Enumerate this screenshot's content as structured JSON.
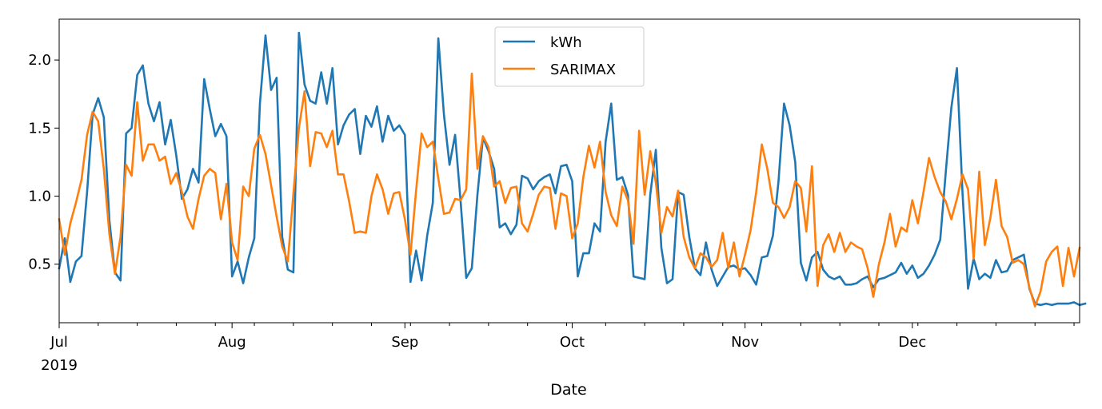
{
  "chart_data": {
    "type": "line",
    "title": "",
    "xlabel": "Date",
    "ylabel": "",
    "x_start": "2019-07-01",
    "x_end": "2019-12-31",
    "ylim": [
      0.07,
      2.3
    ],
    "yticks": [
      0.5,
      1.0,
      1.5,
      2.0
    ],
    "ytick_labels": [
      "0.5",
      "1.0",
      "1.5",
      "2.0"
    ],
    "xticks": [
      {
        "date": "2019-07-01",
        "label": "Jul",
        "sublabel": "2019"
      },
      {
        "date": "2019-08-01",
        "label": "Aug",
        "sublabel": ""
      },
      {
        "date": "2019-09-01",
        "label": "Sep",
        "sublabel": ""
      },
      {
        "date": "2019-10-01",
        "label": "Oct",
        "sublabel": ""
      },
      {
        "date": "2019-11-01",
        "label": "Nov",
        "sublabel": ""
      },
      {
        "date": "2019-12-01",
        "label": "Dec",
        "sublabel": ""
      }
    ],
    "legend_position": "top-center",
    "grid": false,
    "series": [
      {
        "name": "kWh",
        "color": "#1f77b4",
        "values": [
          0.47,
          0.69,
          0.37,
          0.52,
          0.56,
          1.03,
          1.6,
          1.72,
          1.58,
          0.82,
          0.44,
          0.38,
          1.46,
          1.5,
          1.89,
          1.96,
          1.68,
          1.55,
          1.69,
          1.38,
          1.56,
          1.3,
          0.98,
          1.05,
          1.2,
          1.1,
          1.86,
          1.64,
          1.44,
          1.53,
          1.44,
          0.41,
          0.52,
          0.36,
          0.55,
          0.69,
          1.68,
          2.18,
          1.78,
          1.87,
          0.7,
          0.46,
          0.44,
          2.2,
          1.82,
          1.7,
          1.68,
          1.91,
          1.68,
          1.94,
          1.38,
          1.52,
          1.6,
          1.64,
          1.31,
          1.59,
          1.51,
          1.66,
          1.4,
          1.59,
          1.48,
          1.52,
          1.45,
          0.37,
          0.6,
          0.38,
          0.71,
          0.95,
          2.16,
          1.6,
          1.23,
          1.45,
          0.96,
          0.4,
          0.47,
          1.01,
          1.43,
          1.33,
          1.2,
          0.77,
          0.8,
          0.72,
          0.79,
          1.15,
          1.13,
          1.05,
          1.11,
          1.14,
          1.16,
          1.02,
          1.22,
          1.23,
          1.11,
          0.41,
          0.58,
          0.58,
          0.8,
          0.74,
          1.4,
          1.68,
          1.12,
          1.14,
          1.01,
          0.41,
          0.4,
          0.39,
          1.01,
          1.34,
          0.62,
          0.36,
          0.39,
          1.03,
          1.01,
          0.7,
          0.47,
          0.42,
          0.66,
          0.46,
          0.34,
          0.41,
          0.48,
          0.49,
          0.46,
          0.47,
          0.42,
          0.35,
          0.55,
          0.56,
          0.71,
          1.11,
          1.68,
          1.52,
          1.25,
          0.51,
          0.38,
          0.55,
          0.59,
          0.46,
          0.41,
          0.39,
          0.41,
          0.35,
          0.35,
          0.36,
          0.39,
          0.41,
          0.33,
          0.39,
          0.4,
          0.42,
          0.44,
          0.51,
          0.43,
          0.49,
          0.4,
          0.43,
          0.49,
          0.57,
          0.68,
          1.18,
          1.65,
          1.94,
          1.02,
          0.32,
          0.54,
          0.39,
          0.43,
          0.4,
          0.53,
          0.44,
          0.45,
          0.53,
          0.55,
          0.57,
          0.32,
          0.21,
          0.2,
          0.21,
          0.2,
          0.21,
          0.21,
          0.21,
          0.22,
          0.2,
          0.21
        ],
        "count_note": ""
      },
      {
        "name": "SARIMAX",
        "color": "#ff7f0e",
        "values": [
          0.83,
          0.57,
          0.8,
          0.95,
          1.12,
          1.45,
          1.62,
          1.55,
          1.2,
          0.72,
          0.43,
          0.7,
          1.23,
          1.15,
          1.69,
          1.26,
          1.38,
          1.38,
          1.26,
          1.29,
          1.09,
          1.17,
          1.03,
          0.85,
          0.76,
          0.98,
          1.15,
          1.2,
          1.17,
          0.83,
          1.09,
          0.66,
          0.53,
          1.07,
          1.0,
          1.35,
          1.45,
          1.31,
          1.08,
          0.85,
          0.63,
          0.52,
          1.02,
          1.5,
          1.77,
          1.22,
          1.47,
          1.46,
          1.36,
          1.48,
          1.16,
          1.16,
          0.96,
          0.73,
          0.74,
          0.73,
          1.0,
          1.16,
          1.05,
          0.87,
          1.02,
          1.03,
          0.83,
          0.57,
          1.04,
          1.46,
          1.36,
          1.4,
          1.13,
          0.87,
          0.88,
          0.98,
          0.97,
          1.05,
          1.9,
          1.2,
          1.44,
          1.36,
          1.07,
          1.11,
          0.95,
          1.06,
          1.07,
          0.8,
          0.74,
          0.87,
          1.01,
          1.07,
          1.06,
          0.76,
          1.02,
          1.0,
          0.69,
          0.8,
          1.14,
          1.37,
          1.21,
          1.4,
          1.03,
          0.86,
          0.78,
          1.07,
          0.97,
          0.65,
          1.48,
          1.01,
          1.33,
          1.1,
          0.73,
          0.92,
          0.85,
          1.04,
          0.7,
          0.55,
          0.47,
          0.58,
          0.55,
          0.48,
          0.53,
          0.73,
          0.47,
          0.66,
          0.41,
          0.57,
          0.75,
          1.03,
          1.38,
          1.2,
          0.95,
          0.92,
          0.84,
          0.92,
          1.11,
          1.06,
          0.74,
          1.22,
          0.34,
          0.64,
          0.72,
          0.59,
          0.73,
          0.59,
          0.66,
          0.63,
          0.61,
          0.47,
          0.26,
          0.5,
          0.66,
          0.87,
          0.63,
          0.77,
          0.74,
          0.97,
          0.8,
          1.03,
          1.28,
          1.14,
          1.03,
          0.96,
          0.83,
          0.98,
          1.16,
          1.05,
          0.54,
          1.18,
          0.64,
          0.84,
          1.12,
          0.78,
          0.7,
          0.51,
          0.53,
          0.5,
          0.33,
          0.19,
          0.3,
          0.52,
          0.59,
          0.63,
          0.34,
          0.62,
          0.41,
          0.62
        ]
      }
    ]
  }
}
